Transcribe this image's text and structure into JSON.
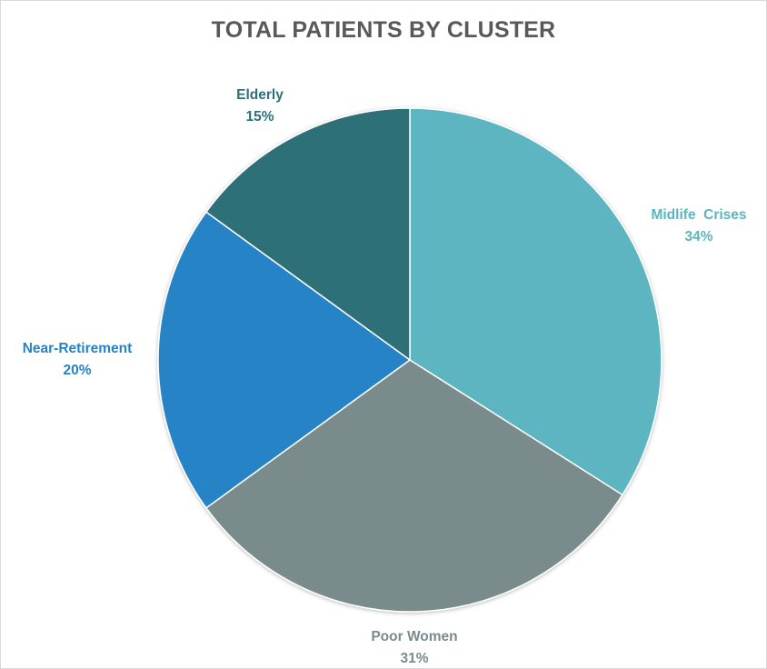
{
  "chart_data": {
    "type": "pie",
    "title": "TOTAL PATIENTS BY CLUSTER",
    "slices": [
      {
        "name": "Midlife  Crises",
        "value": 34,
        "label": "34%",
        "color": "#5bb5c1"
      },
      {
        "name": "Poor Women",
        "value": 31,
        "label": "31%",
        "color": "#7a8b8c"
      },
      {
        "name": "Near-Retirement",
        "value": 20,
        "label": "20%",
        "color": "#2683c6"
      },
      {
        "name": "Elderly",
        "value": 15,
        "label": "15%",
        "color": "#2d7077"
      }
    ],
    "label_colors": {
      "Midlife  Crises": "#5bb5c1",
      "Poor Women": "#7a8b8c",
      "Near-Retirement": "#2683c6",
      "Elderly": "#2d7077"
    }
  }
}
